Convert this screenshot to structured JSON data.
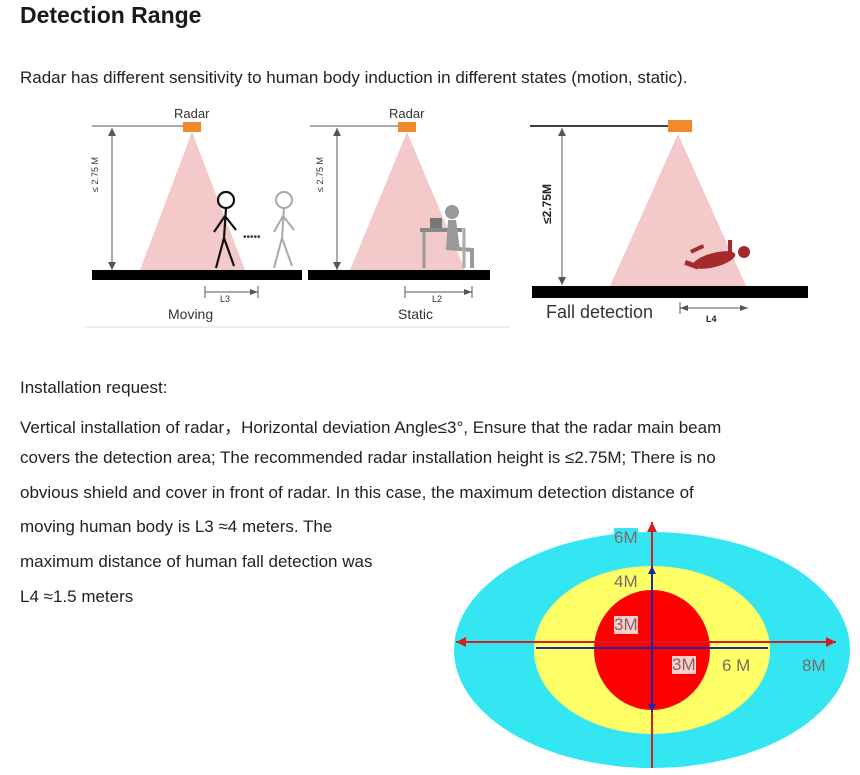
{
  "heading": "Detection Range",
  "intro": "Radar has different sensitivity to human body induction in different states (motion, static).",
  "figure": {
    "panel1": {
      "radar_label": "Radar",
      "height_label": "≤ 2.75 M",
      "dist_label": "L3",
      "caption": "Moving"
    },
    "panel2": {
      "radar_label": "Radar",
      "height_label": "≤ 2.75 M",
      "dist_label": "L2",
      "caption": "Static"
    },
    "panel3": {
      "height_label": "≤2.75M",
      "dist_label": "L4",
      "caption": "Fall detection"
    },
    "colors": {
      "radar": "#f08a2c",
      "beam": "#f4c9c9",
      "floor": "#000000"
    }
  },
  "installation": {
    "title": "Installation request:",
    "lines": [
      "Vertical installation of radar，Horizontal deviation Angle≤3°, Ensure that the radar main beam",
      "covers the detection area; The recommended radar installation height is ≤2.75M;  There is no",
      "obvious shield and cover in front of radar. In this case, the maximum detection distance of",
      "moving human body is L3 ≈4 meters. The",
      "maximum distance of human fall detection was",
      "L4 ≈1.5 meters"
    ]
  },
  "zone_diagram": {
    "labels": {
      "outer_v": "6M",
      "mid_v": "4M",
      "inner_v": "3M",
      "inner_h": "3M",
      "mid_h": "6 M",
      "outer_h": "8M"
    },
    "colors": {
      "outer": "#33e6f2",
      "mid": "#ffff66",
      "inner": "#ff0000",
      "axis_h": "#d02020",
      "axis_v": "#1a2aa0",
      "label_text": "#7a6a6a"
    }
  }
}
